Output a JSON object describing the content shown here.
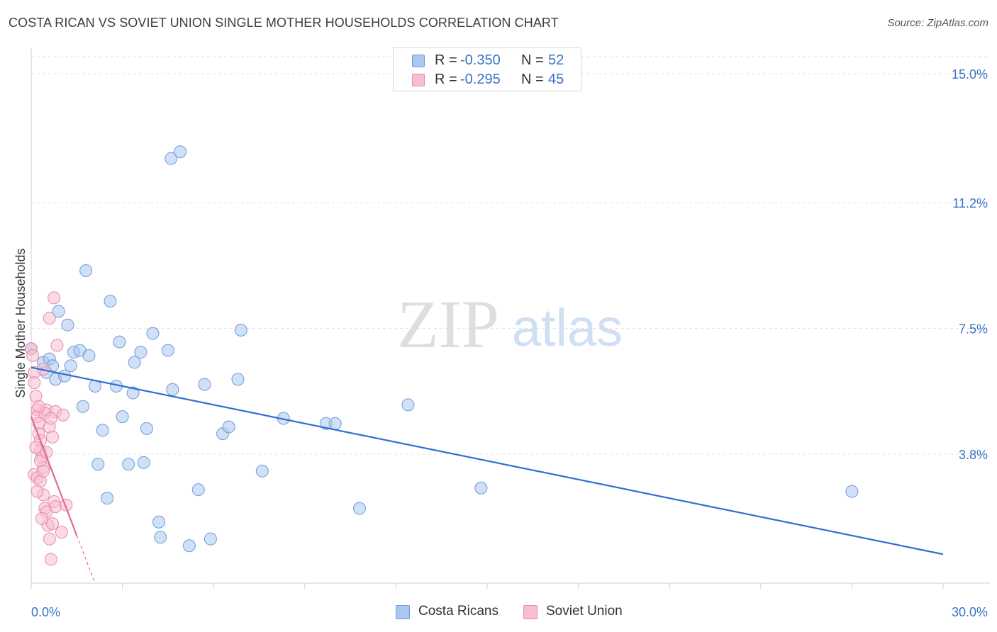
{
  "title": "COSTA RICAN VS SOVIET UNION SINGLE MOTHER HOUSEHOLDS CORRELATION CHART",
  "source": "Source: ZipAtlas.com",
  "watermark": {
    "zip": "ZIP",
    "atlas": "atlas"
  },
  "legend_top": {
    "rows": [
      {
        "r_label": "R =",
        "r_value": "-0.350",
        "n_label": "N =",
        "n_value": "52",
        "color": "#a9c7f0",
        "border": "#6f9bd8"
      },
      {
        "r_label": "R =",
        "r_value": "-0.295",
        "n_label": "N =",
        "n_value": "45",
        "color": "#f7bdd0",
        "border": "#e88aaa"
      }
    ]
  },
  "legend_bottom": {
    "items": [
      {
        "label": "Costa Ricans",
        "color": "#a9c7f0",
        "border": "#6f9bd8"
      },
      {
        "label": "Soviet Union",
        "color": "#f7bdd0",
        "border": "#e88aaa"
      }
    ]
  },
  "chart_data": {
    "type": "scatter",
    "title": "COSTA RICAN VS SOVIET UNION SINGLE MOTHER HOUSEHOLDS CORRELATION CHART",
    "xlabel": "",
    "ylabel": "Single Mother Households",
    "xlim": [
      0,
      30
    ],
    "ylim": [
      0,
      15.5
    ],
    "x_tick_labels": [
      "0.0%",
      "30.0%"
    ],
    "y_ticks": [
      3.8,
      7.5,
      11.2,
      15.0
    ],
    "y_tick_labels": [
      "3.8%",
      "7.5%",
      "11.2%",
      "15.0%"
    ],
    "grid": true,
    "series": [
      {
        "name": "Costa Ricans",
        "color": "#a9c7f0",
        "stroke": "#6f9bd8",
        "trend_color": "#2f6fd0",
        "trend": {
          "x0": 0,
          "y0": 6.35,
          "x1": 30,
          "y1": 0.85
        },
        "points": [
          [
            0.0,
            6.9
          ],
          [
            0.4,
            6.5
          ],
          [
            0.5,
            6.2
          ],
          [
            0.6,
            6.6
          ],
          [
            0.7,
            6.4
          ],
          [
            0.8,
            6.0
          ],
          [
            0.9,
            8.0
          ],
          [
            1.1,
            6.1
          ],
          [
            1.2,
            7.6
          ],
          [
            1.3,
            6.4
          ],
          [
            1.4,
            6.8
          ],
          [
            1.6,
            6.85
          ],
          [
            1.7,
            5.2
          ],
          [
            1.8,
            9.2
          ],
          [
            1.9,
            6.7
          ],
          [
            2.1,
            5.8
          ],
          [
            2.2,
            3.5
          ],
          [
            2.35,
            4.5
          ],
          [
            2.5,
            2.5
          ],
          [
            2.6,
            8.3
          ],
          [
            2.8,
            5.8
          ],
          [
            2.9,
            7.1
          ],
          [
            3.0,
            4.9
          ],
          [
            3.2,
            3.5
          ],
          [
            3.35,
            5.6
          ],
          [
            3.4,
            6.5
          ],
          [
            3.6,
            6.8
          ],
          [
            3.7,
            3.55
          ],
          [
            3.8,
            4.55
          ],
          [
            4.0,
            7.35
          ],
          [
            4.2,
            1.8
          ],
          [
            4.25,
            1.35
          ],
          [
            4.5,
            6.85
          ],
          [
            4.6,
            12.5
          ],
          [
            4.65,
            5.7
          ],
          [
            4.9,
            12.7
          ],
          [
            5.2,
            1.1
          ],
          [
            5.5,
            2.75
          ],
          [
            5.7,
            5.85
          ],
          [
            5.9,
            1.3
          ],
          [
            6.3,
            4.4
          ],
          [
            6.5,
            4.6
          ],
          [
            6.8,
            6.0
          ],
          [
            6.9,
            7.45
          ],
          [
            7.6,
            3.3
          ],
          [
            8.3,
            4.85
          ],
          [
            9.7,
            4.7
          ],
          [
            10.0,
            4.7
          ],
          [
            10.8,
            2.2
          ],
          [
            12.4,
            5.25
          ],
          [
            14.8,
            2.8
          ],
          [
            27.0,
            2.7
          ]
        ]
      },
      {
        "name": "Soviet Union",
        "color": "#f7bdd0",
        "stroke": "#e88aaa",
        "trend_color": "#e06a94",
        "trend": {
          "x0": 0,
          "y0": 4.9,
          "x1": 1.5,
          "y1": 1.4
        },
        "trend_dashed": {
          "x0": 1.5,
          "y0": 1.4,
          "x1": 2.1,
          "y1": 0.0
        },
        "points": [
          [
            0.0,
            6.9
          ],
          [
            0.05,
            6.7
          ],
          [
            0.1,
            6.2
          ],
          [
            0.1,
            5.9
          ],
          [
            0.15,
            5.5
          ],
          [
            0.2,
            5.1
          ],
          [
            0.2,
            4.9
          ],
          [
            0.25,
            4.7
          ],
          [
            0.25,
            4.4
          ],
          [
            0.3,
            4.2
          ],
          [
            0.3,
            3.9
          ],
          [
            0.35,
            3.7
          ],
          [
            0.4,
            3.4
          ],
          [
            0.1,
            3.2
          ],
          [
            0.2,
            3.1
          ],
          [
            0.3,
            3.0
          ],
          [
            0.4,
            2.6
          ],
          [
            0.45,
            2.2
          ],
          [
            0.5,
            2.1
          ],
          [
            0.55,
            1.7
          ],
          [
            0.6,
            1.3
          ],
          [
            0.65,
            0.7
          ],
          [
            0.7,
            1.75
          ],
          [
            0.75,
            2.4
          ],
          [
            0.8,
            2.25
          ],
          [
            0.5,
            5.1
          ],
          [
            0.6,
            4.6
          ],
          [
            0.7,
            4.3
          ],
          [
            0.8,
            5.05
          ],
          [
            0.85,
            7.0
          ],
          [
            0.6,
            7.8
          ],
          [
            0.75,
            8.4
          ],
          [
            0.4,
            6.3
          ],
          [
            0.45,
            5.0
          ],
          [
            0.3,
            3.6
          ],
          [
            0.2,
            2.7
          ],
          [
            0.35,
            1.9
          ],
          [
            1.0,
            1.5
          ],
          [
            1.15,
            2.3
          ],
          [
            1.05,
            4.95
          ],
          [
            0.15,
            4.0
          ],
          [
            0.5,
            3.85
          ],
          [
            0.25,
            5.2
          ],
          [
            0.65,
            4.85
          ],
          [
            0.4,
            3.3
          ]
        ]
      }
    ]
  }
}
